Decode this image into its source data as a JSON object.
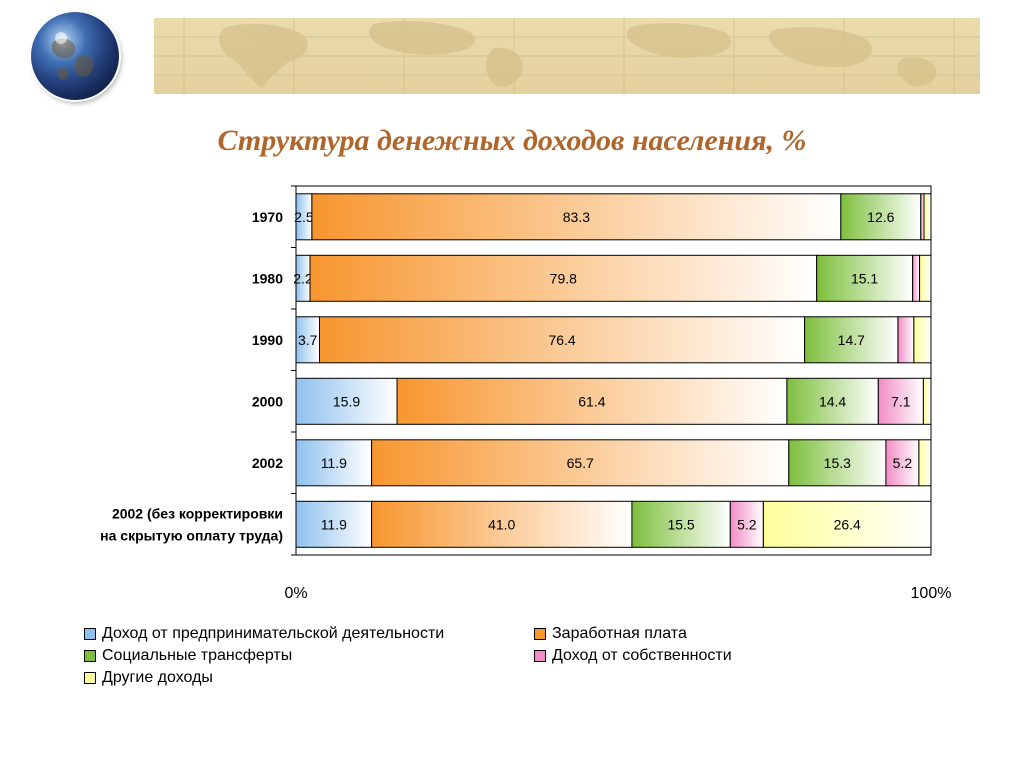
{
  "slide": {
    "title": "Структура денежных доходов населения, %"
  },
  "colors": {
    "title": "#b0652a",
    "entrepreneurial": "#8fc1ee",
    "wages": "#f7962f",
    "social": "#7dbf3c",
    "property": "#f28cc6",
    "other": "#ffff9a"
  },
  "chart_data": {
    "type": "bar",
    "orientation": "horizontal",
    "stacked": "100%",
    "categories": [
      "1970",
      "1980",
      "1990",
      "2000",
      "2002",
      "2002 (без корректировки на скрытую оплату труда)"
    ],
    "category_label_lines": [
      [
        "1970"
      ],
      [
        "1980"
      ],
      [
        "1990"
      ],
      [
        "2000"
      ],
      [
        "2002"
      ],
      [
        "2002 (без корректировки",
        "на скрытую оплату труда)"
      ]
    ],
    "series": [
      {
        "name": "Доход от предпринимательской деятельности",
        "key": "entrepreneurial",
        "values": [
          2.5,
          2.2,
          3.7,
          15.9,
          11.9,
          11.9
        ],
        "labels": [
          "2.5",
          "2.2",
          "3.7",
          "15.9",
          "11.9",
          "11.9"
        ]
      },
      {
        "name": "Заработная плата",
        "key": "wages",
        "values": [
          83.3,
          79.8,
          76.4,
          61.4,
          65.7,
          41.0
        ],
        "labels": [
          "83.3",
          "79.8",
          "76.4",
          "61.4",
          "65.7",
          "41.0"
        ]
      },
      {
        "name": "Социальные трансферты",
        "key": "social",
        "values": [
          12.6,
          15.1,
          14.7,
          14.4,
          15.3,
          15.5
        ],
        "labels": [
          "12.6",
          "15.1",
          "14.7",
          "14.4",
          "15.3",
          "15.5"
        ]
      },
      {
        "name": "Доход от собственности",
        "key": "property",
        "values": [
          0.5,
          1.1,
          2.5,
          7.1,
          5.2,
          5.2
        ],
        "labels": [
          "",
          "",
          "",
          "7.1",
          "5.2",
          "5.2"
        ]
      },
      {
        "name": "Другие доходы",
        "key": "other",
        "values": [
          1.1,
          1.8,
          2.7,
          1.2,
          1.9,
          26.4
        ],
        "labels": [
          "",
          "",
          "",
          "",
          "",
          "26.4"
        ]
      }
    ],
    "x_tick_labels": [
      "0%",
      "100%"
    ],
    "xlim": [
      0,
      100
    ],
    "grid": false,
    "legend_position": "bottom"
  }
}
